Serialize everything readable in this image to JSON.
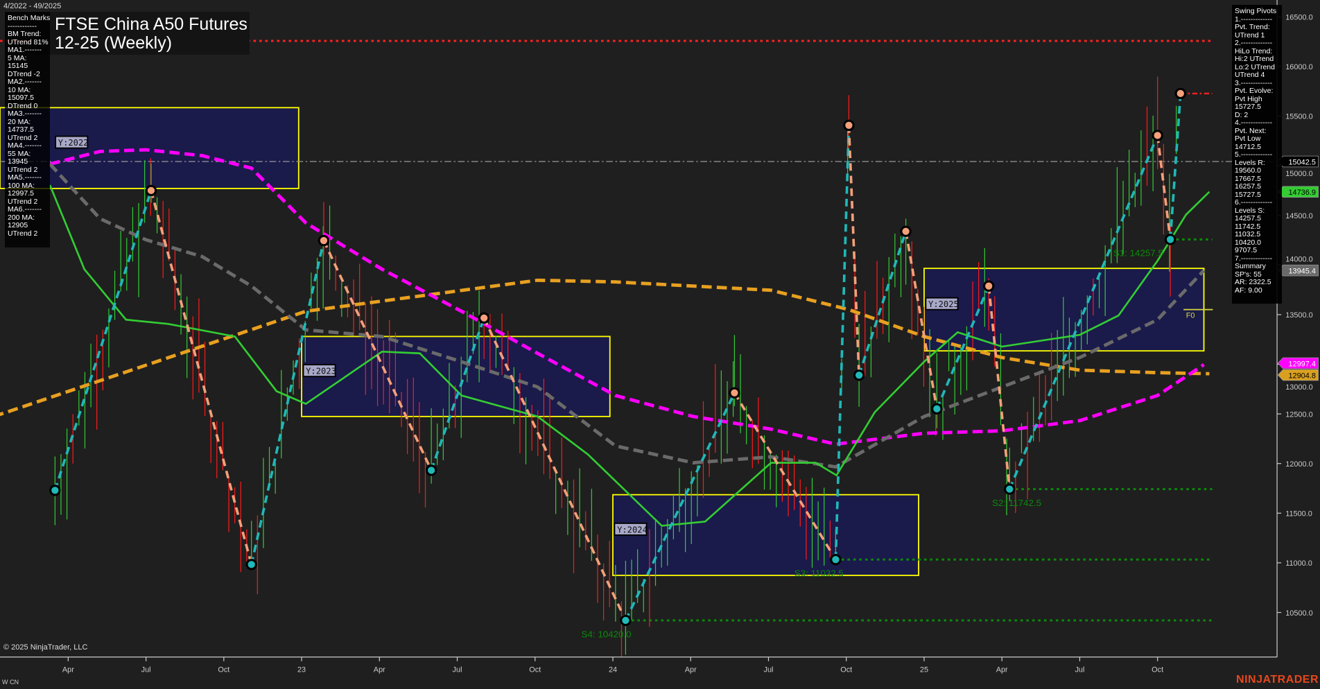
{
  "header": {
    "date_range": "4/2022 - 49/2025",
    "title_line1": "FTSE China A50 Futures",
    "title_line2": "12-25 (Weekly)"
  },
  "bench_marks": {
    "lines": [
      "Bench Marks",
      "------------",
      "BM Trend:",
      "UTrend 81%",
      "MA1.-------",
      "5 MA:",
      "15145",
      "DTrend -2",
      "MA2.-------",
      "10 MA:",
      "15097.5",
      "DTrend 0",
      "MA3.-------",
      "20 MA:",
      "14737.5",
      "UTrend 2",
      "MA4.-------",
      "55 MA:",
      "13945",
      "UTrend 2",
      "MA5.-------",
      "100 MA:",
      "12997.5",
      "UTrend 2",
      "MA6.-------",
      "200 MA:",
      "12905",
      "UTrend 2"
    ]
  },
  "swing_pivots": {
    "lines": [
      "Swing Pivots",
      "1.-------------",
      "Pvt. Trend:",
      "UTrend 1",
      "2.-------------",
      "HiLo Trend:",
      "Hi:2 UTrend",
      "Lo:2 UTrend",
      "UTrend 4",
      "3.-------------",
      "Pvt. Evolve:",
      "Pvt High",
      "15727.5",
      "D: 2",
      "4.-------------",
      "Pvt. Next:",
      "Pvt Low",
      "14712.5",
      "5.-------------",
      "Levels R:",
      "19560.0",
      "17667.5",
      "16257.5",
      "15727.5",
      "6.-------------",
      "Levels S:",
      "14257.5",
      "11742.5",
      "11032.5",
      "10420.0",
      "9707.5",
      "7.-------------",
      "Summary",
      "SP's: 55",
      "AR: 2322.5",
      "AF: 9.00"
    ]
  },
  "footer": {
    "copyright": "© 2025 NinjaTrader, LLC",
    "instrument_code": "W CN",
    "brand": "NINJATRADER"
  },
  "colors": {
    "background": "#1f1f1f",
    "ma20": "#33cc33",
    "ma55": "#6a6a6a",
    "ma100": "#ff00ff",
    "ma200": "#e8a020",
    "pivot_high": "#f4a07a",
    "pivot_low": "#20b8b8",
    "year_box_fill": "#191950",
    "year_box_border": "#ffff00",
    "support": "#0a8a0a",
    "resistance": "#ff2020",
    "up_bar": "#33cc33",
    "down_bar": "#ff1a1a"
  },
  "chart_data": {
    "type": "line",
    "y_axis": {
      "ylim": [
        10200,
        16700
      ],
      "ticks": [
        10500,
        11000,
        11500,
        12000,
        12500,
        13000,
        13500,
        14000,
        14500,
        15000,
        15500,
        16000,
        16500
      ],
      "tick_labels": [
        "10500.0",
        "11000.0",
        "11500.0",
        "12000.0",
        "12500.0",
        "13000.0",
        "13500.0",
        "14000.0",
        "14500.0",
        "15000.0",
        "15500.0",
        "16000.0",
        "16500.0"
      ]
    },
    "x_axis": {
      "ticks": [
        {
          "date": "2022-04-01",
          "label": "Apr"
        },
        {
          "date": "2022-07-01",
          "label": "Jul"
        },
        {
          "date": "2022-10-01",
          "label": "Oct"
        },
        {
          "date": "2023-01-01",
          "label": "23"
        },
        {
          "date": "2023-04-01",
          "label": "Apr"
        },
        {
          "date": "2023-07-01",
          "label": "Jul"
        },
        {
          "date": "2023-10-01",
          "label": "Oct"
        },
        {
          "date": "2024-01-01",
          "label": "24"
        },
        {
          "date": "2024-04-01",
          "label": "Apr"
        },
        {
          "date": "2024-07-01",
          "label": "Jul"
        },
        {
          "date": "2024-10-01",
          "label": "Oct"
        },
        {
          "date": "2025-01-01",
          "label": "25"
        },
        {
          "date": "2025-04-01",
          "label": "Apr"
        },
        {
          "date": "2025-07-01",
          "label": "Jul"
        },
        {
          "date": "2025-10-01",
          "label": "Oct"
        }
      ]
    },
    "price_markers": [
      {
        "value": "15042.5",
        "price": 15042.5,
        "bg": "#000000",
        "fg": "#ffffff"
      },
      {
        "value": "14736.9",
        "price": 14736.9,
        "bg": "#33cc33",
        "fg": "#000000"
      },
      {
        "value": "13945.4",
        "price": 13945.4,
        "bg": "#6a6a6a",
        "fg": "#ffffff"
      },
      {
        "value": "12997.4",
        "price": 12997.4,
        "bg": "#ff00ff",
        "fg": "#ffffff"
      },
      {
        "value": "12904.8",
        "price": 12904.8,
        "bg": "#d9a020",
        "fg": "#000000"
      }
    ],
    "series": [
      {
        "key": "ma200",
        "color": "#e8a020",
        "style": "dashed",
        "points": [
          [
            "2022-01-05",
            12474
          ],
          [
            "2023-01-06",
            13534
          ],
          [
            "2023-10-04",
            13847
          ],
          [
            "2024-01-04",
            13830
          ],
          [
            "2024-07-04",
            13746
          ],
          [
            "2024-10-04",
            13551
          ],
          [
            "2025-01-01",
            13280
          ],
          [
            "2025-04-01",
            13068
          ],
          [
            "2025-07-01",
            12941
          ],
          [
            "2025-10-01",
            12915
          ],
          [
            "2025-12-01",
            12905
          ]
        ]
      },
      {
        "key": "ma100",
        "color": "#ff00ff",
        "style": "dashed",
        "points": [
          [
            "2022-03-10",
            15017
          ],
          [
            "2022-05-08",
            15144
          ],
          [
            "2022-07-01",
            15161
          ],
          [
            "2022-09-06",
            15102
          ],
          [
            "2022-11-03",
            14975
          ],
          [
            "2023-01-06",
            14424
          ],
          [
            "2023-04-04",
            13958
          ],
          [
            "2023-07-06",
            13534
          ],
          [
            "2023-10-04",
            13110
          ],
          [
            "2024-01-04",
            12686
          ],
          [
            "2024-04-04",
            12474
          ],
          [
            "2024-07-04",
            12347
          ],
          [
            "2024-09-19",
            12195
          ],
          [
            "2025-01-01",
            12305
          ],
          [
            "2025-04-01",
            12330
          ],
          [
            "2025-07-01",
            12432
          ],
          [
            "2025-10-01",
            12686
          ],
          [
            "2025-11-25",
            12997
          ]
        ]
      },
      {
        "key": "ma55",
        "color": "#6a6a6a",
        "style": "dashed",
        "points": [
          [
            "2022-03-10",
            15017
          ],
          [
            "2022-05-08",
            14466
          ],
          [
            "2022-07-01",
            14254
          ],
          [
            "2022-09-06",
            14085
          ],
          [
            "2022-11-03",
            13788
          ],
          [
            "2023-01-06",
            13347
          ],
          [
            "2023-04-04",
            13280
          ],
          [
            "2023-07-06",
            13025
          ],
          [
            "2023-10-04",
            12771
          ],
          [
            "2024-01-04",
            12178
          ],
          [
            "2024-04-04",
            12008
          ],
          [
            "2024-07-04",
            12068
          ],
          [
            "2024-09-19",
            11966
          ],
          [
            "2025-01-01",
            12474
          ],
          [
            "2025-04-01",
            12771
          ],
          [
            "2025-07-01",
            13068
          ],
          [
            "2025-10-01",
            13449
          ],
          [
            "2025-11-25",
            13945
          ]
        ]
      },
      {
        "key": "ma20",
        "color": "#33cc33",
        "style": "solid",
        "points": [
          [
            "2022-03-10",
            14805
          ],
          [
            "2022-04-20",
            13958
          ],
          [
            "2022-06-08",
            13449
          ],
          [
            "2022-07-27",
            13407
          ],
          [
            "2022-10-14",
            13280
          ],
          [
            "2022-12-02",
            12729
          ],
          [
            "2023-01-06",
            12602
          ],
          [
            "2023-04-04",
            13127
          ],
          [
            "2023-05-18",
            13110
          ],
          [
            "2023-07-06",
            12686
          ],
          [
            "2023-10-04",
            12474
          ],
          [
            "2023-12-02",
            12093
          ],
          [
            "2024-02-28",
            11373
          ],
          [
            "2024-04-18",
            11415
          ],
          [
            "2024-07-04",
            12008
          ],
          [
            "2024-08-26",
            12008
          ],
          [
            "2024-09-20",
            11881
          ],
          [
            "2024-11-04",
            12517
          ],
          [
            "2025-01-01",
            13025
          ],
          [
            "2025-02-10",
            13322
          ],
          [
            "2025-04-01",
            13178
          ],
          [
            "2025-07-01",
            13297
          ],
          [
            "2025-08-16",
            13491
          ],
          [
            "2025-10-01",
            14042
          ],
          [
            "2025-11-04",
            14508
          ],
          [
            "2025-12-01",
            14737
          ]
        ]
      }
    ],
    "swing_pivots": [
      {
        "date": "2022-03-16",
        "price": 11730,
        "type": "low"
      },
      {
        "date": "2022-07-07",
        "price": 14750,
        "type": "high"
      },
      {
        "date": "2022-11-03",
        "price": 10983,
        "type": "low"
      },
      {
        "date": "2023-01-27",
        "price": 14246,
        "type": "high"
      },
      {
        "date": "2023-06-01",
        "price": 11932,
        "type": "low"
      },
      {
        "date": "2023-08-02",
        "price": 13466,
        "type": "high"
      },
      {
        "date": "2024-01-16",
        "price": 10420,
        "type": "low"
      },
      {
        "date": "2024-05-22",
        "price": 12712,
        "type": "high"
      },
      {
        "date": "2024-09-19",
        "price": 11032.5,
        "type": "low"
      },
      {
        "date": "2024-10-04",
        "price": 15407,
        "type": "high"
      },
      {
        "date": "2024-10-16",
        "price": 12890,
        "type": "low"
      },
      {
        "date": "2024-12-10",
        "price": 14339,
        "type": "high"
      },
      {
        "date": "2025-01-16",
        "price": 12551,
        "type": "low"
      },
      {
        "date": "2025-03-16",
        "price": 13788,
        "type": "high"
      },
      {
        "date": "2025-04-10",
        "price": 11742.5,
        "type": "low"
      },
      {
        "date": "2025-10-01",
        "price": 15305,
        "type": "high"
      },
      {
        "date": "2025-10-16",
        "price": 14257.5,
        "type": "low"
      },
      {
        "date": "2025-10-28",
        "price": 15727.5,
        "type": "high"
      }
    ],
    "year_boxes": [
      {
        "label": "Y:2022",
        "start": "2022-01-01",
        "end": "2022-12-28",
        "high": 15585,
        "low": 14771
      },
      {
        "label": "Y:2023",
        "start": "2023-01-01",
        "end": "2023-12-28",
        "high": 13280,
        "low": 12474
      },
      {
        "label": "Y:2024",
        "start": "2024-01-01",
        "end": "2024-12-25",
        "high": 11686,
        "low": 10873
      },
      {
        "label": "Y:2025",
        "start": "2025-01-01",
        "end": "2025-11-25",
        "high": 13966,
        "low": 13135
      }
    ],
    "levels": [
      {
        "kind": "resistance",
        "price": 16257.5,
        "start": "2022-01-01",
        "label": ""
      },
      {
        "kind": "resistance",
        "price": 15727.5,
        "start": "2025-10-28",
        "label": ""
      },
      {
        "kind": "current",
        "price": 15042.5,
        "start": "2022-01-01",
        "label": ""
      },
      {
        "kind": "support",
        "price": 14257.5,
        "start": "2025-10-16",
        "label": "S1: 14257.5",
        "label_date": "2025-08-10"
      },
      {
        "kind": "support",
        "price": 11742.5,
        "start": "2025-04-10",
        "label": "S2: 11742.5",
        "label_date": "2025-03-20"
      },
      {
        "kind": "support",
        "price": 11032.5,
        "start": "2024-09-19",
        "label": "S3: 11032.5",
        "label_date": "2024-08-01"
      },
      {
        "kind": "support",
        "price": 10420.0,
        "start": "2024-01-16",
        "label": "S4: 10420.0",
        "label_date": "2023-11-25"
      }
    ],
    "fib_marker": {
      "label": "F0",
      "price": 13551,
      "start": "2025-11-01",
      "end": "2025-12-05"
    }
  }
}
